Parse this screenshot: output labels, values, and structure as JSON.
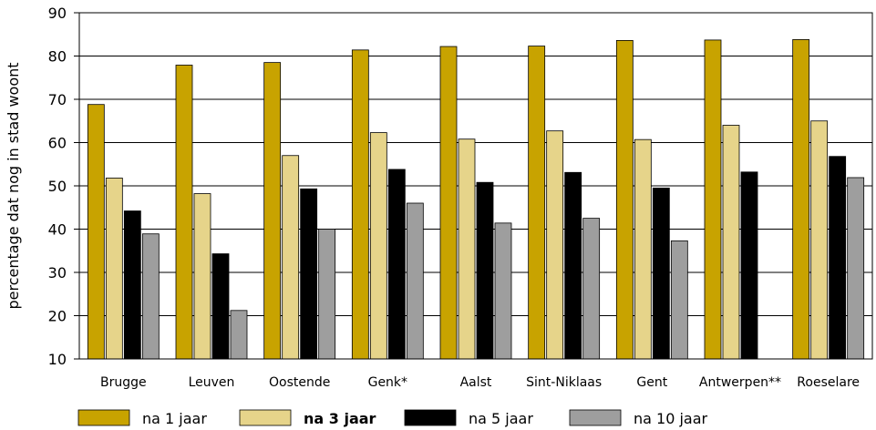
{
  "chart_data": {
    "type": "bar",
    "title": "",
    "xlabel": "",
    "ylabel": "percentage dat nog in stad woont",
    "ylim": [
      10,
      90
    ],
    "yticks": [
      10,
      20,
      30,
      40,
      50,
      60,
      70,
      80,
      90
    ],
    "grid": true,
    "legend_position": "bottom",
    "categories": [
      "Brugge",
      "Leuven",
      "Oostende",
      "Genk*",
      "Aalst",
      "Sint-Niklaas",
      "Gent",
      "Antwerpen**",
      "Roeselare"
    ],
    "series": [
      {
        "name": "na 1 jaar",
        "color": "#c8a300",
        "values": [
          68.8,
          77.9,
          78.5,
          81.4,
          82.2,
          82.3,
          83.6,
          83.7,
          83.8
        ]
      },
      {
        "name": "na 3 jaar",
        "color": "#e6d48a",
        "values": [
          51.8,
          48.2,
          57.0,
          62.3,
          60.8,
          62.7,
          60.7,
          64.0,
          65.0
        ]
      },
      {
        "name": "na 5 jaar",
        "color": "#000000",
        "values": [
          44.2,
          34.3,
          49.3,
          53.8,
          50.8,
          53.1,
          49.5,
          53.2,
          56.8
        ]
      },
      {
        "name": "na 10 jaar",
        "color": "#9e9e9e",
        "values": [
          38.9,
          21.2,
          40.0,
          46.0,
          41.4,
          42.5,
          37.3,
          null,
          51.9
        ]
      }
    ]
  }
}
